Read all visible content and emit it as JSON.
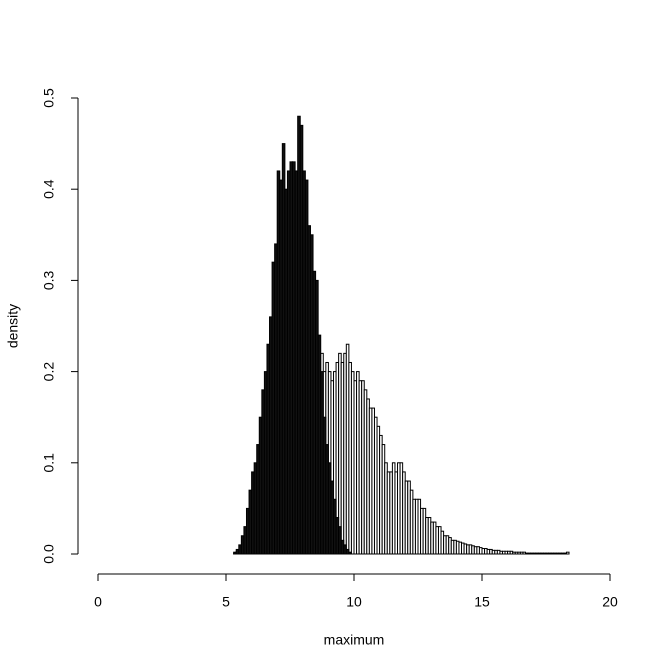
{
  "chart_data": {
    "type": "histogram",
    "x_label": "maximum",
    "y_label": "density",
    "xlim": [
      0,
      20
    ],
    "xticks": [
      0,
      5,
      10,
      15,
      20
    ],
    "ylim": [
      0,
      0.5
    ],
    "yticks": [
      {
        "value": 0,
        "label": "0.0"
      },
      0.1,
      0.2,
      0.3,
      0.4,
      0.5
    ],
    "series": [
      {
        "color": "#ffffff",
        "bins": [
          5.3,
          5.4,
          5.5,
          5.6,
          5.7,
          5.8,
          5.9,
          6.0,
          6.1,
          6.2,
          6.3,
          6.4,
          6.5,
          6.6,
          6.7,
          6.8,
          6.9,
          7.0,
          7.1,
          7.2,
          7.3,
          7.4,
          7.5,
          7.6,
          7.7,
          7.8,
          7.9,
          8.0,
          8.1,
          8.2,
          8.3,
          8.4,
          8.5,
          8.6,
          8.7,
          8.8,
          8.9,
          9.0,
          9.1,
          9.2,
          9.3,
          9.4,
          9.5,
          9.6,
          9.7,
          9.8,
          9.9,
          10.0,
          10.1,
          10.2,
          10.3,
          10.4,
          10.5,
          10.6,
          10.7,
          10.8,
          10.9,
          11.0,
          11.1,
          11.2,
          11.3,
          11.4,
          11.5,
          11.6,
          11.7,
          11.8,
          11.9,
          12.0,
          12.1,
          12.2,
          12.3,
          12.4,
          12.5,
          12.6,
          12.7,
          12.8,
          12.9,
          13.0,
          13.1,
          13.2,
          13.3,
          13.4,
          13.5,
          13.6,
          13.7,
          13.8,
          13.9,
          14.0,
          14.1,
          14.2,
          14.3,
          14.4,
          14.5,
          14.6,
          14.7,
          14.8,
          14.9,
          15.0,
          15.1,
          15.2,
          15.3,
          15.4,
          15.5,
          15.6,
          15.7,
          15.8,
          15.9,
          16.0,
          16.1,
          16.2,
          16.3,
          16.4,
          16.5,
          16.6,
          16.7,
          16.8,
          16.9,
          17.0,
          17.1,
          17.2,
          17.3,
          17.4,
          17.5,
          17.6,
          17.7,
          17.8,
          17.9,
          18.0,
          18.1,
          18.2,
          18.3,
          18.4
        ],
        "values": [
          0.001,
          0.003,
          0.005,
          0.01,
          0.015,
          0.02,
          0.03,
          0.04,
          0.05,
          0.06,
          0.07,
          0.08,
          0.09,
          0.1,
          0.11,
          0.12,
          0.13,
          0.14,
          0.15,
          0.16,
          0.17,
          0.17,
          0.18,
          0.19,
          0.19,
          0.2,
          0.2,
          0.2,
          0.21,
          0.21,
          0.21,
          0.21,
          0.22,
          0.21,
          0.22,
          0.2,
          0.21,
          0.2,
          0.19,
          0.2,
          0.21,
          0.22,
          0.21,
          0.22,
          0.23,
          0.21,
          0.2,
          0.19,
          0.2,
          0.19,
          0.19,
          0.18,
          0.17,
          0.16,
          0.16,
          0.15,
          0.14,
          0.13,
          0.12,
          0.1,
          0.09,
          0.09,
          0.1,
          0.09,
          0.1,
          0.1,
          0.09,
          0.08,
          0.08,
          0.07,
          0.06,
          0.06,
          0.06,
          0.05,
          0.05,
          0.04,
          0.04,
          0.035,
          0.035,
          0.03,
          0.03,
          0.025,
          0.02,
          0.02,
          0.018,
          0.015,
          0.015,
          0.014,
          0.013,
          0.012,
          0.011,
          0.01,
          0.01,
          0.009,
          0.008,
          0.008,
          0.007,
          0.006,
          0.006,
          0.005,
          0.005,
          0.004,
          0.004,
          0.004,
          0.003,
          0.003,
          0.003,
          0.003,
          0.003,
          0.002,
          0.002,
          0.002,
          0.002,
          0.002,
          0.001,
          0.001,
          0.001,
          0.001,
          0.001,
          0.001,
          0.001,
          0.001,
          0.001,
          0.001,
          0.001,
          0.001,
          0.001,
          0.001,
          0.001,
          0.001,
          0.002
        ]
      },
      {
        "color": "#111111",
        "bins": [
          5.3,
          5.4,
          5.5,
          5.6,
          5.7,
          5.8,
          5.9,
          6.0,
          6.1,
          6.2,
          6.3,
          6.4,
          6.5,
          6.6,
          6.7,
          6.8,
          6.9,
          7.0,
          7.1,
          7.2,
          7.3,
          7.4,
          7.5,
          7.6,
          7.7,
          7.8,
          7.9,
          8.0,
          8.1,
          8.2,
          8.3,
          8.4,
          8.5,
          8.6,
          8.7,
          8.8,
          8.9,
          9.0,
          9.1,
          9.2,
          9.3,
          9.4,
          9.5,
          9.6,
          9.7,
          9.8,
          9.9
        ],
        "values": [
          0.002,
          0.005,
          0.01,
          0.02,
          0.03,
          0.05,
          0.07,
          0.09,
          0.1,
          0.12,
          0.15,
          0.18,
          0.2,
          0.23,
          0.26,
          0.32,
          0.34,
          0.42,
          0.41,
          0.45,
          0.4,
          0.42,
          0.43,
          0.43,
          0.42,
          0.48,
          0.47,
          0.42,
          0.41,
          0.36,
          0.35,
          0.31,
          0.3,
          0.24,
          0.2,
          0.15,
          0.12,
          0.1,
          0.08,
          0.06,
          0.04,
          0.03,
          0.015,
          0.01,
          0.005,
          0.002
        ]
      }
    ]
  }
}
